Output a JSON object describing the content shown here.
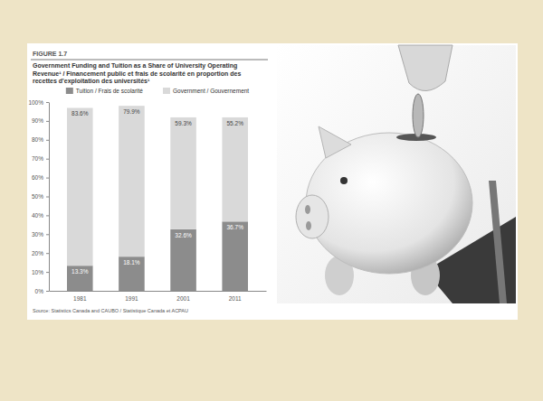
{
  "chart_data": {
    "type": "bar",
    "figure_label": "FIGURE 1.7",
    "title": "Government Funding and Tuition as a Share of University Operating Revenue¹ / Financement public et frais de scolarité en proportion des recettes d'exploitation des universités¹",
    "source": "Source: Statistics Canada and CAUBO / Statistique Canada et ACPAU",
    "categories": [
      "1981",
      "1991",
      "2001",
      "2011"
    ],
    "series": [
      {
        "name": "Tuition / Frais de scolarité",
        "color": "#8c8c8c",
        "values": [
          13.3,
          18.1,
          32.6,
          36.7
        ],
        "value_labels": [
          "13.3%",
          "18.1%",
          "32.6%",
          "36.7%"
        ]
      },
      {
        "name": "Government / Gouvernement",
        "color": "#d9d9d9",
        "values": [
          83.6,
          79.9,
          59.3,
          55.2
        ],
        "value_labels": [
          "83.6%",
          "79.9%",
          "59.3%",
          "55.2%"
        ]
      }
    ],
    "stacked": true,
    "data_labels": true,
    "legend": "top",
    "grid": false,
    "ylim": [
      0,
      100
    ],
    "yticks": [
      {
        "value": 0,
        "label": "0%"
      },
      {
        "value": 10,
        "label": "10%"
      },
      {
        "value": 20,
        "label": "20%"
      },
      {
        "value": 30,
        "label": "30%"
      },
      {
        "value": 40,
        "label": "40%"
      },
      {
        "value": 50,
        "label": "50%"
      },
      {
        "value": 60,
        "label": "60%"
      },
      {
        "value": 70,
        "label": "70%"
      },
      {
        "value": 80,
        "label": "80%"
      },
      {
        "value": 90,
        "label": "90%"
      },
      {
        "value": 100,
        "label": "100%"
      }
    ]
  }
}
